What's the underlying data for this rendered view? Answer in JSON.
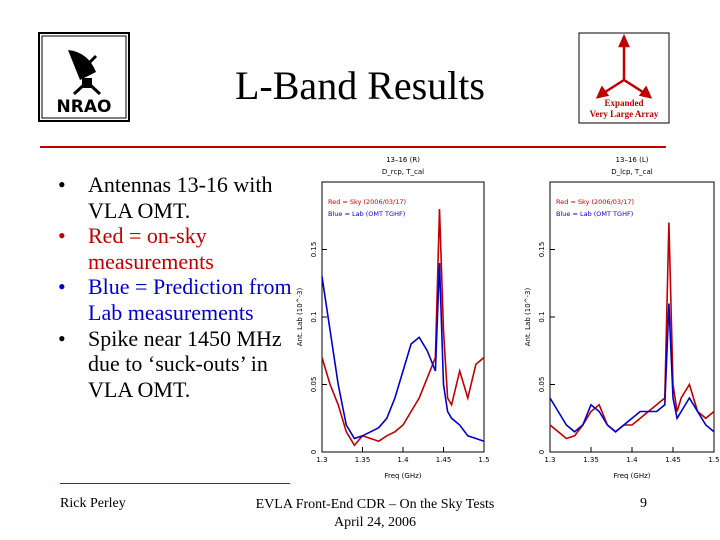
{
  "slide": {
    "title": "L-Band Results",
    "bullets": [
      {
        "text": "Antennas 13-16 with VLA OMT."
      },
      {
        "text": "Red = on-sky measurements"
      },
      {
        "text": "Blue = Prediction from Lab measurements"
      },
      {
        "text": "Spike near 1450 MHz due to ‘suck-outs’ in VLA OMT."
      }
    ],
    "bullet_symbol": "•",
    "footer": {
      "author": "Rick Perley",
      "center_line1": "EVLA Front-End CDR – On the Sky Tests",
      "center_line2": "April 24, 2006",
      "page": "9"
    },
    "logos": {
      "left": {
        "text": "NRAO",
        "icon": "nrao-telescope-icon"
      },
      "right": {
        "line1": "Expanded",
        "line2": "Very Large Array",
        "icon": "evla-tripod-icon"
      }
    },
    "colors": {
      "rule": "#c00000",
      "sky": "#c00000",
      "lab": "#0000cc"
    }
  },
  "chart_data": [
    {
      "type": "line",
      "top_label_line1": "13–16 (R)",
      "top_label_line2": "D_rcp, T_cal",
      "legend": [
        "Red = Sky (2006/03/17)",
        "Blue = Lab (OMT TGHF)"
      ],
      "xlabel": "Freq (GHz)",
      "ylabel": "Ant. Lab (10^-3)",
      "xticks": [
        "1.3",
        "1.35",
        "1.4",
        "1.45",
        "1.5"
      ],
      "yticks": [
        "0",
        "0.05",
        "0.1",
        "0.15"
      ],
      "xlim": [
        1.3,
        1.5
      ],
      "ylim": [
        0,
        0.2
      ],
      "series": [
        {
          "color": "#c00000",
          "x": [
            1.3,
            1.31,
            1.32,
            1.33,
            1.34,
            1.35,
            1.36,
            1.37,
            1.38,
            1.39,
            1.4,
            1.41,
            1.42,
            1.43,
            1.44,
            1.445,
            1.45,
            1.455,
            1.46,
            1.47,
            1.48,
            1.49,
            1.5
          ],
          "y": [
            0.07,
            0.05,
            0.035,
            0.015,
            0.005,
            0.012,
            0.01,
            0.008,
            0.012,
            0.015,
            0.02,
            0.03,
            0.04,
            0.055,
            0.07,
            0.18,
            0.09,
            0.04,
            0.035,
            0.06,
            0.04,
            0.065,
            0.07
          ]
        },
        {
          "color": "#0000cc",
          "x": [
            1.3,
            1.31,
            1.32,
            1.33,
            1.34,
            1.35,
            1.36,
            1.37,
            1.38,
            1.39,
            1.4,
            1.41,
            1.42,
            1.43,
            1.44,
            1.445,
            1.45,
            1.455,
            1.46,
            1.47,
            1.48,
            1.49,
            1.5
          ],
          "y": [
            0.13,
            0.09,
            0.05,
            0.02,
            0.01,
            0.012,
            0.015,
            0.018,
            0.025,
            0.04,
            0.06,
            0.08,
            0.085,
            0.075,
            0.06,
            0.14,
            0.05,
            0.03,
            0.025,
            0.02,
            0.012,
            0.01,
            0.008
          ]
        }
      ]
    },
    {
      "type": "line",
      "top_label_line1": "13–16 (L)",
      "top_label_line2": "D_lcp, T_cal",
      "legend": [
        "Red = Sky (2006/03/17)",
        "Blue = Lab (OMT TGHF)"
      ],
      "xlabel": "Freq (GHz)",
      "ylabel": "Ant. Lab (10^-3)",
      "xticks": [
        "1.3",
        "1.35",
        "1.4",
        "1.45",
        "1.5"
      ],
      "yticks": [
        "0",
        "0.05",
        "0.1",
        "0.15"
      ],
      "xlim": [
        1.3,
        1.5
      ],
      "ylim": [
        0,
        0.2
      ],
      "series": [
        {
          "color": "#c00000",
          "x": [
            1.3,
            1.31,
            1.32,
            1.33,
            1.34,
            1.35,
            1.36,
            1.37,
            1.38,
            1.39,
            1.4,
            1.41,
            1.42,
            1.43,
            1.44,
            1.445,
            1.45,
            1.455,
            1.46,
            1.47,
            1.48,
            1.49,
            1.5
          ],
          "y": [
            0.02,
            0.015,
            0.01,
            0.012,
            0.02,
            0.03,
            0.035,
            0.02,
            0.015,
            0.02,
            0.02,
            0.025,
            0.03,
            0.035,
            0.04,
            0.17,
            0.05,
            0.03,
            0.04,
            0.05,
            0.03,
            0.025,
            0.03
          ]
        },
        {
          "color": "#0000cc",
          "x": [
            1.3,
            1.31,
            1.32,
            1.33,
            1.34,
            1.35,
            1.36,
            1.37,
            1.38,
            1.39,
            1.4,
            1.41,
            1.42,
            1.43,
            1.44,
            1.445,
            1.45,
            1.455,
            1.46,
            1.47,
            1.48,
            1.49,
            1.5
          ],
          "y": [
            0.04,
            0.03,
            0.02,
            0.015,
            0.02,
            0.035,
            0.03,
            0.02,
            0.015,
            0.02,
            0.025,
            0.03,
            0.03,
            0.03,
            0.035,
            0.11,
            0.04,
            0.025,
            0.03,
            0.04,
            0.03,
            0.02,
            0.015
          ]
        }
      ]
    }
  ]
}
